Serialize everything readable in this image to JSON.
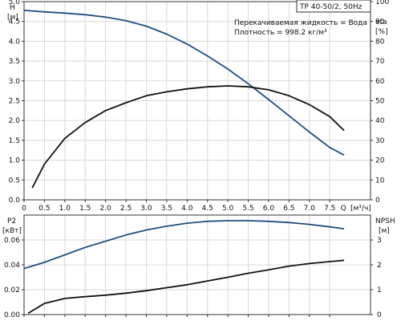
{
  "header": {
    "pump_label": "TP 40-50/2, 50Hz",
    "fluid_note": "Перекачиваемая жидкость = Вода",
    "density_note": "Плотность = 998.2 кг/м³"
  },
  "colors": {
    "blue_curve": "#1f4e82",
    "black_curve": "#111111",
    "grid": "#d8d8d8",
    "axis": "#333333"
  },
  "chart_data": [
    {
      "type": "line",
      "name": "head-efficiency",
      "x_axis": {
        "label_left": "0",
        "label_unit_q": "Q",
        "label_unit": "[м³/ч]",
        "range": [
          0,
          8.5
        ],
        "ticks": [
          "0",
          "0.5",
          "1.0",
          "1.5",
          "2.0",
          "2.5",
          "3.0",
          "3.5",
          "4.0",
          "4.5",
          "5.0",
          "5.5",
          "6.0",
          "6.5",
          "7.0",
          "7.5"
        ],
        "tick_values": [
          0,
          0.5,
          1.0,
          1.5,
          2.0,
          2.5,
          3.0,
          3.5,
          4.0,
          4.5,
          5.0,
          5.5,
          6.0,
          6.5,
          7.0,
          7.5
        ]
      },
      "y_left": {
        "label": "H",
        "unit": "[м]",
        "range": [
          0,
          5.0
        ],
        "ticks": [
          "0.0",
          "0.5",
          "1.0",
          "1.5",
          "2.0",
          "2.5",
          "3.0",
          "3.5",
          "4.0",
          "4.5",
          "5.0"
        ],
        "tick_values": [
          0,
          0.5,
          1.0,
          1.5,
          2.0,
          2.5,
          3.0,
          3.5,
          4.0,
          4.5,
          5.0
        ]
      },
      "y_right": {
        "label": "eta",
        "unit": "[%]",
        "range": [
          0,
          100
        ],
        "ticks": [
          "0",
          "10",
          "20",
          "30",
          "40",
          "50",
          "60",
          "70",
          "80",
          "90",
          "100"
        ],
        "tick_values": [
          0,
          10,
          20,
          30,
          40,
          50,
          60,
          70,
          80,
          90,
          100
        ]
      },
      "series": [
        {
          "key": "head",
          "axis": "left",
          "color": "#1f4e82",
          "x": [
            0,
            0.5,
            1.0,
            1.5,
            2.0,
            2.5,
            3.0,
            3.5,
            4.0,
            4.5,
            5.0,
            5.5,
            6.0,
            6.5,
            7.0,
            7.5,
            7.85
          ],
          "y": [
            4.78,
            4.74,
            4.71,
            4.67,
            4.61,
            4.52,
            4.38,
            4.18,
            3.93,
            3.63,
            3.3,
            2.93,
            2.53,
            2.12,
            1.71,
            1.32,
            1.13
          ]
        },
        {
          "key": "efficiency",
          "axis": "right",
          "color": "#111111",
          "x": [
            0.2,
            0.5,
            1.0,
            1.5,
            2.0,
            2.5,
            3.0,
            3.5,
            4.0,
            4.5,
            5.0,
            5.5,
            6.0,
            6.5,
            7.0,
            7.5,
            7.85
          ],
          "y": [
            6,
            18,
            31,
            39,
            45,
            49,
            52.5,
            54.5,
            56,
            57,
            57.5,
            57,
            55.5,
            52.5,
            48,
            42,
            35
          ]
        }
      ]
    },
    {
      "type": "line",
      "name": "power-npsh",
      "x_axis": {
        "range": [
          0,
          8.5
        ]
      },
      "y_left": {
        "label": "P2",
        "unit": "[кВт]",
        "range": [
          0,
          0.08
        ],
        "ticks": [
          "0.00",
          "0.02",
          "0.04",
          "0.06"
        ],
        "tick_values": [
          0,
          0.02,
          0.04,
          0.06
        ]
      },
      "y_right": {
        "label": "NPSH",
        "unit": "[м]",
        "range": [
          0,
          4.0
        ],
        "ticks": [
          "0",
          "1",
          "2",
          "3"
        ],
        "tick_values": [
          0,
          1,
          2,
          3
        ]
      },
      "series": [
        {
          "key": "power",
          "axis": "left",
          "color": "#1f4e82",
          "x": [
            0,
            0.5,
            1.0,
            1.5,
            2.0,
            2.5,
            3.0,
            3.5,
            4.0,
            4.5,
            5.0,
            5.5,
            6.0,
            6.5,
            7.0,
            7.5,
            7.85
          ],
          "y": [
            0.037,
            0.042,
            0.048,
            0.054,
            0.059,
            0.064,
            0.068,
            0.071,
            0.0735,
            0.075,
            0.0755,
            0.0755,
            0.075,
            0.074,
            0.0725,
            0.0705,
            0.069
          ]
        },
        {
          "key": "npsh",
          "axis": "right",
          "color": "#111111",
          "x": [
            0.1,
            0.5,
            1.0,
            1.5,
            2.0,
            2.5,
            3.0,
            3.5,
            4.0,
            4.5,
            5.0,
            5.5,
            6.0,
            6.5,
            7.0,
            7.5,
            7.85
          ],
          "y": [
            0.05,
            0.45,
            0.65,
            0.72,
            0.78,
            0.86,
            0.96,
            1.08,
            1.2,
            1.35,
            1.5,
            1.66,
            1.8,
            1.95,
            2.05,
            2.13,
            2.18
          ]
        }
      ]
    }
  ]
}
